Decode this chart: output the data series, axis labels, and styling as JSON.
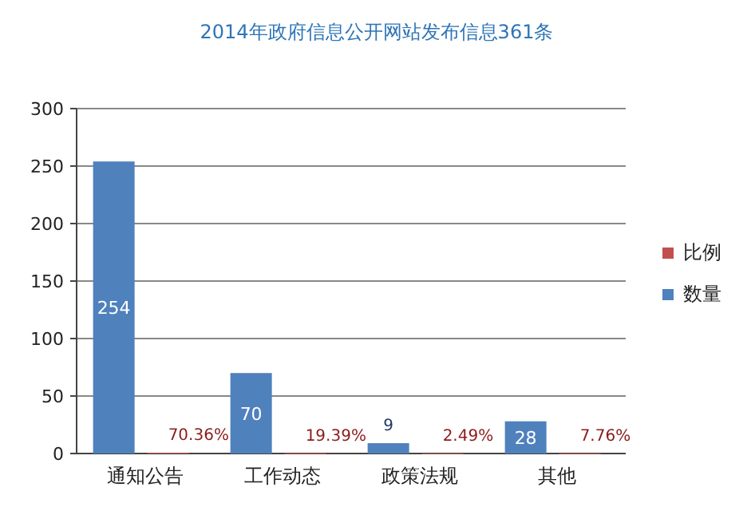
{
  "chart_data": {
    "type": "bar",
    "title": "2014年政府信息公开网站发布信息361条",
    "categories": [
      "通知公告",
      "工作动态",
      "政策法规",
      "其他"
    ],
    "series": [
      {
        "name": "数量",
        "color": "#4f81bd",
        "values": [
          254,
          70,
          9,
          28
        ],
        "value_labels": [
          "254",
          "70",
          "9",
          "28"
        ]
      },
      {
        "name": "比例",
        "color": "#c0504d",
        "values": [
          0.7036,
          0.1939,
          0.0249,
          0.0776
        ],
        "value_labels": [
          "70.36%",
          "19.39%",
          "2.49%",
          "7.76%"
        ]
      }
    ],
    "ylim": [
      0,
      300
    ],
    "yticks": [
      0,
      50,
      100,
      150,
      200,
      250,
      300
    ],
    "grid": "y",
    "legend": "right"
  }
}
